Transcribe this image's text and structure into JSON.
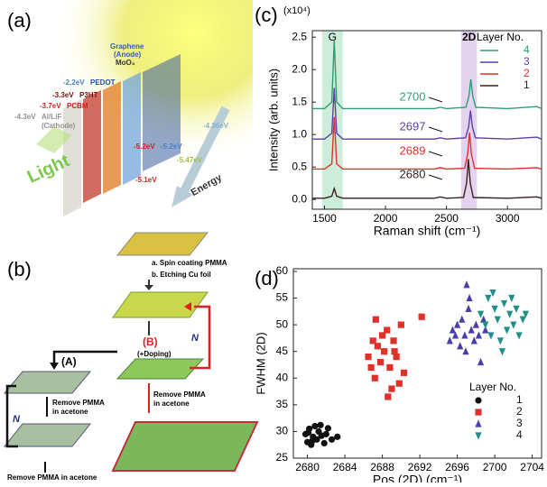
{
  "panels": {
    "a": {
      "labels": [
        "(a)",
        "Graphene",
        "(Anode)",
        "MoO₃",
        "-2.2eV",
        "PEDOT",
        "-3.3eV",
        "P3HT",
        "-3.7eV",
        "PCBM",
        "-4.3eV",
        "Al/LiF",
        "(Cathode)",
        "Light",
        "Energy",
        "-4.36eV",
        "-5.2eV",
        "-5.2eV",
        "-5.47eV",
        "-5.1eV"
      ]
    },
    "b": {
      "labels": [
        "(b)",
        "a. Spin coating PMMA",
        "b. Etching Cu foil",
        "(A)",
        "(B)",
        "(+Doping)",
        "N",
        "N",
        "Remove PMMA",
        "in acetone",
        "Remove PMMA",
        "in acetone",
        "Remove PMMA in acetone"
      ]
    }
  },
  "chart_data": [
    {
      "type": "line",
      "panel_label": "(c)",
      "y_multiplier": "(x10⁴)",
      "x_label": "Raman shift (cm⁻¹)",
      "y_label": "Intensity (arb. units)",
      "xlim": [
        1400,
        3280
      ],
      "xticks": [
        1500,
        2000,
        2500,
        3000
      ],
      "ylim": [
        -0.15,
        2.6
      ],
      "yticks": [
        {
          "value": 0,
          "label": "0.0"
        },
        0.5,
        {
          "value": 1,
          "label": "1.0"
        },
        1.5,
        {
          "value": 2,
          "label": "2.0"
        },
        2.5
      ],
      "highlight_regions": [
        {
          "label": "G",
          "range": [
            1480,
            1650
          ],
          "color": "#bfe8cf"
        },
        {
          "label": "2D",
          "range": [
            2620,
            2750
          ],
          "color": "#ddc8ea"
        }
      ],
      "legend_title": "Layer No.",
      "legend": "upper right",
      "series": [
        {
          "name": "4",
          "color": "#2e9e72",
          "x": [
            1400,
            1500,
            1560,
            1580,
            1600,
            1650,
            2000,
            2400,
            2450,
            2500,
            2660,
            2685,
            2700,
            2715,
            2740,
            3000,
            3240,
            3280
          ],
          "values": [
            1.4,
            1.4,
            1.5,
            2.45,
            1.5,
            1.4,
            1.4,
            1.4,
            1.42,
            1.4,
            1.42,
            1.6,
            1.85,
            1.6,
            1.42,
            1.4,
            1.43,
            1.4
          ]
        },
        {
          "name": "3",
          "color": "#5b3fa6",
          "x": [
            1400,
            1500,
            1560,
            1580,
            1600,
            1650,
            2000,
            2400,
            2450,
            2500,
            2657,
            2682,
            2697,
            2712,
            2737,
            3000,
            3240,
            3280
          ],
          "values": [
            0.93,
            0.93,
            1.02,
            1.72,
            1.02,
            0.93,
            0.93,
            0.93,
            0.95,
            0.93,
            0.95,
            1.12,
            1.37,
            1.12,
            0.95,
            0.93,
            0.96,
            0.93
          ]
        },
        {
          "name": "2",
          "color": "#e0302a",
          "x": [
            1400,
            1500,
            1560,
            1580,
            1600,
            1650,
            2000,
            2400,
            2450,
            2500,
            2650,
            2674,
            2689,
            2704,
            2730,
            3000,
            3240,
            3280
          ],
          "values": [
            0.47,
            0.47,
            0.55,
            1.27,
            0.55,
            0.47,
            0.47,
            0.47,
            0.49,
            0.47,
            0.48,
            0.7,
            1.03,
            0.7,
            0.48,
            0.47,
            0.49,
            0.47
          ]
        },
        {
          "name": "1",
          "color": "#3a1f1f",
          "x": [
            1400,
            1500,
            1560,
            1580,
            1600,
            1650,
            2000,
            2400,
            2450,
            2500,
            2640,
            2665,
            2680,
            2695,
            2720,
            3000,
            3240,
            3280
          ],
          "values": [
            0.02,
            0.02,
            0.05,
            0.17,
            0.05,
            0.02,
            0.02,
            0.02,
            0.04,
            0.02,
            0.03,
            0.25,
            0.62,
            0.25,
            0.03,
            0.02,
            0.04,
            0.02
          ]
        }
      ],
      "annotations": [
        {
          "text": "2700",
          "color": "#2e9e72"
        },
        {
          "text": "2697",
          "color": "#5b3fa6"
        },
        {
          "text": "2689",
          "color": "#e0302a"
        },
        {
          "text": "2680",
          "color": "#3a1f1f"
        }
      ]
    },
    {
      "type": "scatter",
      "panel_label": "(d)",
      "x_label": "Pos (2D) (cm⁻¹)",
      "y_label": "FWHM (2D)",
      "xlim": [
        2678.5,
        2705
      ],
      "xticks": [
        2680,
        2684,
        2688,
        2692,
        2696,
        2700,
        2704
      ],
      "ylim": [
        25,
        60.5
      ],
      "yticks": [
        25,
        30,
        35,
        40,
        45,
        50,
        55,
        60
      ],
      "legend_title": "Layer No.",
      "legend": "lower right",
      "series": [
        {
          "name": "1",
          "color": "#111111",
          "marker": "circle",
          "x": [
            2679.8,
            2680.0,
            2680.2,
            2680.4,
            2680.6,
            2680.8,
            2681.0,
            2681.2,
            2681.5,
            2681.8,
            2682.2,
            2682.6,
            2683.2,
            2680.5,
            2681.4,
            2680.1,
            2682.0
          ],
          "values": [
            29.5,
            28.0,
            30.5,
            27.5,
            29.0,
            31.0,
            28.5,
            30.0,
            29.2,
            27.8,
            30.6,
            28.5,
            29.0,
            28.2,
            31.2,
            29.8,
            29.5
          ]
        },
        {
          "name": "2",
          "color": "#e0302a",
          "marker": "square",
          "x": [
            2686.5,
            2687.0,
            2687.2,
            2687.5,
            2687.8,
            2688.0,
            2688.2,
            2688.5,
            2688.8,
            2689.0,
            2689.2,
            2689.5,
            2689.8,
            2690.0,
            2690.3,
            2687.3,
            2688.6,
            2689.3,
            2686.8,
            2692.2
          ],
          "values": [
            44,
            47,
            40,
            46,
            43,
            48,
            45,
            49,
            42,
            38,
            47,
            44,
            39,
            50,
            41,
            51,
            36.5,
            45,
            42,
            51.5
          ]
        },
        {
          "name": "3",
          "color": "#4a3fa8",
          "marker": "triangle-up",
          "x": [
            2695.2,
            2695.5,
            2695.8,
            2696.0,
            2696.3,
            2696.5,
            2696.8,
            2697.0,
            2697.2,
            2697.5,
            2697.8,
            2698.0,
            2698.3,
            2698.5,
            2696.9,
            2697.3,
            2699.0,
            2698.8
          ],
          "values": [
            47,
            49,
            48,
            50,
            46,
            51,
            48,
            57.5,
            53,
            49,
            47,
            50,
            48,
            43,
            45,
            55,
            49,
            51
          ]
        },
        {
          "name": "4",
          "color": "#1f8f8a",
          "marker": "triangle-down",
          "x": [
            2698.5,
            2699,
            2699.3,
            2699.6,
            2700,
            2700.3,
            2700.6,
            2701,
            2701.3,
            2701.6,
            2702,
            2702.3,
            2702.6,
            2703,
            2700.8,
            2699.8,
            2701.8,
            2703.3
          ],
          "values": [
            52,
            50,
            55,
            48,
            53,
            51,
            47,
            54,
            49,
            52,
            50,
            53,
            48,
            51,
            45,
            56,
            55,
            52
          ]
        }
      ]
    }
  ]
}
